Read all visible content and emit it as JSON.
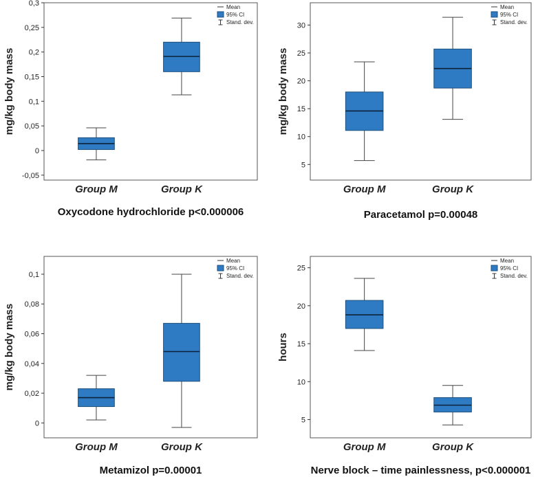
{
  "colors": {
    "box_fill": "#2e7bc4",
    "box_stroke": "#1f4f7a"
  },
  "legend": {
    "mean_label": "Mean",
    "ci_label": "95% CI",
    "sd_label": "Stand. dev."
  },
  "chart_data": [
    {
      "type": "box",
      "title": "Oxycodone hydrochloride p<0.000006",
      "ylabel": "mg/kg body mass",
      "xlabel": "",
      "ylim": [
        -0.06,
        0.3
      ],
      "yticks": [
        -0.05,
        0,
        0.05,
        0.1,
        0.15,
        0.2,
        0.25,
        0.3
      ],
      "ytick_labels": [
        "-0,05",
        "0",
        "0,05",
        "0,1",
        "0,15",
        "0,2",
        "0,25",
        "0,3"
      ],
      "categories": [
        "Group M",
        "Group K"
      ],
      "series": [
        {
          "name": "Group M",
          "sd_low": -0.019,
          "ci_low": 0.002,
          "mean": 0.014,
          "ci_high": 0.026,
          "sd_high": 0.046
        },
        {
          "name": "Group K",
          "sd_low": 0.113,
          "ci_low": 0.16,
          "mean": 0.191,
          "ci_high": 0.22,
          "sd_high": 0.269
        }
      ]
    },
    {
      "type": "box",
      "title": "Paracetamol p=0.00048",
      "ylabel": "mg/kg body mass",
      "xlabel": "",
      "ylim": [
        2.2,
        34
      ],
      "yticks": [
        5,
        10,
        15,
        20,
        25,
        30
      ],
      "ytick_labels": [
        "5",
        "10",
        "15",
        "20",
        "25",
        "30"
      ],
      "categories": [
        "Group M",
        "Group K"
      ],
      "series": [
        {
          "name": "Group M",
          "sd_low": 5.7,
          "ci_low": 11.1,
          "mean": 14.6,
          "ci_high": 18.0,
          "sd_high": 23.4
        },
        {
          "name": "Group K",
          "sd_low": 13.1,
          "ci_low": 18.7,
          "mean": 22.2,
          "ci_high": 25.7,
          "sd_high": 31.4
        }
      ]
    },
    {
      "type": "box",
      "title": "Metamizol p=0.00001",
      "ylabel": "mg/kg body mass",
      "xlabel": "",
      "ylim": [
        -0.01,
        0.112
      ],
      "yticks": [
        0,
        0.02,
        0.04,
        0.06,
        0.08,
        0.1
      ],
      "ytick_labels": [
        "0",
        "0,02",
        "0,04",
        "0,06",
        "0,08",
        "0,1"
      ],
      "categories": [
        "Group M",
        "Group K"
      ],
      "series": [
        {
          "name": "Group M",
          "sd_low": 0.002,
          "ci_low": 0.011,
          "mean": 0.017,
          "ci_high": 0.023,
          "sd_high": 0.032
        },
        {
          "name": "Group K",
          "sd_low": -0.003,
          "ci_low": 0.028,
          "mean": 0.048,
          "ci_high": 0.067,
          "sd_high": 0.1
        }
      ]
    },
    {
      "type": "box",
      "title": "Nerve block – time painlessness,  p<0.000001",
      "ylabel": "hours",
      "xlabel": "",
      "ylim": [
        2.6,
        26.5
      ],
      "yticks": [
        5,
        10,
        15,
        20,
        25
      ],
      "ytick_labels": [
        "5",
        "10",
        "15",
        "20",
        "25"
      ],
      "categories": [
        "Group M",
        "Group K"
      ],
      "series": [
        {
          "name": "Group M",
          "sd_low": 14.1,
          "ci_low": 17.0,
          "mean": 18.8,
          "ci_high": 20.7,
          "sd_high": 23.6
        },
        {
          "name": "Group K",
          "sd_low": 4.3,
          "ci_low": 6.0,
          "mean": 6.9,
          "ci_high": 7.9,
          "sd_high": 9.5
        }
      ]
    }
  ]
}
